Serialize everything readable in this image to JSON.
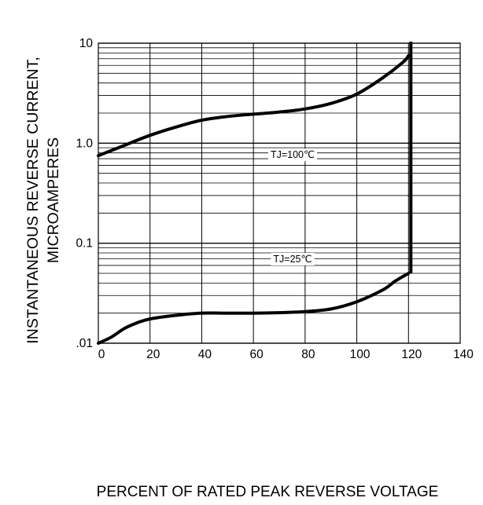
{
  "chart_data": {
    "type": "line",
    "title": "",
    "xlabel": "PERCENT OF RATED PEAK REVERSE VOLTAGE",
    "ylabel_line1": "INSTANTANEOUS REVERSE CURRENT,",
    "ylabel_line2": "MICROAMPERES",
    "xlim": [
      0,
      140
    ],
    "ylim": [
      0.01,
      10
    ],
    "yscale": "log",
    "grid": true,
    "x_ticks": [
      0,
      20,
      40,
      60,
      80,
      100,
      120,
      140
    ],
    "x_tick_labels": [
      "0",
      "20",
      "40",
      "60",
      "80",
      "100",
      "120",
      "140"
    ],
    "y_ticks": [
      0.01,
      0.1,
      1,
      10
    ],
    "y_tick_labels": [
      ".01",
      "0.1",
      "1.0",
      "10"
    ],
    "series": [
      {
        "name": "TJ=100℃",
        "points": [
          [
            0,
            0.75
          ],
          [
            10,
            0.95
          ],
          [
            20,
            1.2
          ],
          [
            30,
            1.45
          ],
          [
            40,
            1.7
          ],
          [
            50,
            1.85
          ],
          [
            60,
            1.95
          ],
          [
            70,
            2.05
          ],
          [
            80,
            2.2
          ],
          [
            90,
            2.5
          ],
          [
            100,
            3.1
          ],
          [
            110,
            4.5
          ],
          [
            118,
            6.5
          ],
          [
            120,
            7.5
          ]
        ]
      },
      {
        "name": "TJ=25℃",
        "points": [
          [
            0,
            0.01
          ],
          [
            5,
            0.0115
          ],
          [
            10,
            0.014
          ],
          [
            15,
            0.016
          ],
          [
            20,
            0.0175
          ],
          [
            30,
            0.019
          ],
          [
            40,
            0.02
          ],
          [
            50,
            0.02
          ],
          [
            60,
            0.02
          ],
          [
            70,
            0.0202
          ],
          [
            80,
            0.0207
          ],
          [
            90,
            0.022
          ],
          [
            100,
            0.026
          ],
          [
            110,
            0.034
          ],
          [
            115,
            0.042
          ],
          [
            120,
            0.05
          ]
        ]
      }
    ],
    "vertical_line_x": 120
  }
}
